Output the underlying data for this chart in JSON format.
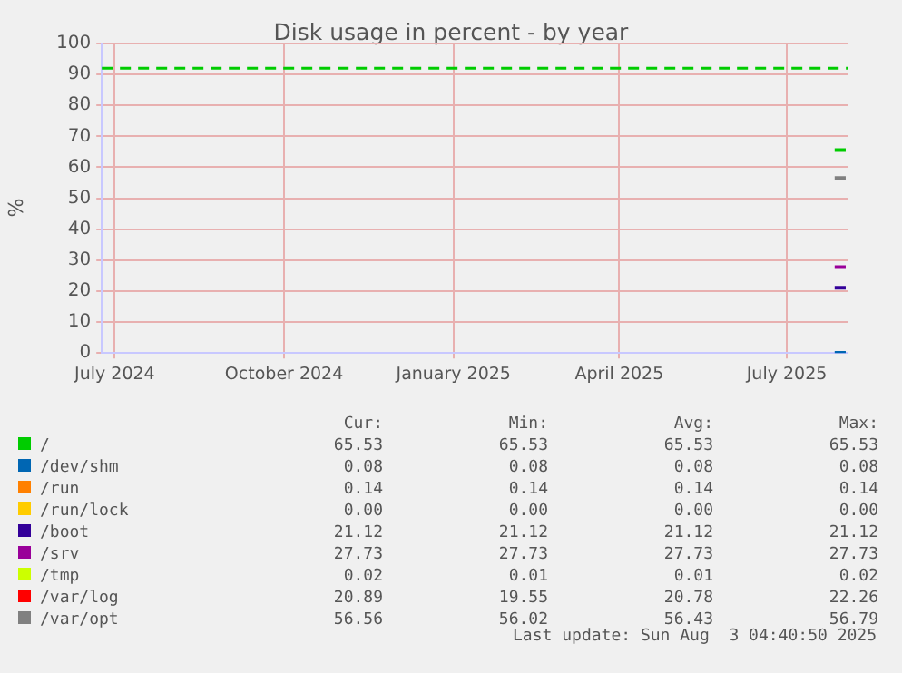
{
  "chart_data": {
    "type": "line",
    "title": "Disk usage in percent - by year",
    "ylabel": "%",
    "x": [
      "2025-07-27",
      "2025-08-02"
    ],
    "xlim": [
      "2024-06-24",
      "2025-08-03"
    ],
    "xticks": [
      {
        "value": "2024-07-01",
        "label": "July 2024"
      },
      {
        "value": "2024-10-01",
        "label": "October 2024"
      },
      {
        "value": "2025-01-01",
        "label": "January 2025"
      },
      {
        "value": "2025-04-01",
        "label": "April 2025"
      },
      {
        "value": "2025-07-01",
        "label": "July 2025"
      }
    ],
    "ylim": [
      0,
      100
    ],
    "yticks": [
      0,
      10,
      20,
      30,
      40,
      50,
      60,
      70,
      80,
      90,
      100
    ],
    "grid": true,
    "legend": "bottom",
    "marker": "none",
    "series": [
      {
        "name": "/",
        "color": "#00cc00",
        "values": [
          65.53,
          65.53
        ]
      },
      {
        "name": "/dev/shm",
        "color": "#0066b3",
        "values": [
          0.08,
          0.08
        ]
      },
      {
        "name": "/run",
        "color": "#ff8000",
        "values": [
          null,
          null
        ]
      },
      {
        "name": "/run/lock",
        "color": "#ffcc00",
        "values": [
          null,
          null
        ]
      },
      {
        "name": "/boot",
        "color": "#330099",
        "values": [
          21.12,
          21.12
        ]
      },
      {
        "name": "/srv",
        "color": "#990099",
        "values": [
          27.73,
          27.73
        ]
      },
      {
        "name": "/tmp",
        "color": "#ccff00",
        "values": [
          null,
          null
        ]
      },
      {
        "name": "/var/log",
        "color": "#ff0000",
        "values": [
          null,
          null
        ]
      },
      {
        "name": "/var/opt",
        "color": "#808080",
        "values": [
          56.56,
          56.56
        ]
      }
    ],
    "ref_lines": [
      {
        "axis": "y",
        "value": 92,
        "label": null,
        "color": "#00cc00",
        "line_style": "dashed"
      }
    ],
    "annotations": [
      "Cur:",
      "Min:",
      "Avg:",
      "Max:",
      "65.53",
      "65.53",
      "65.53",
      "65.53",
      "0.08",
      "0.08",
      "0.08",
      "0.08",
      "0.14",
      "0.14",
      "0.14",
      "0.14",
      "0.00",
      "0.00",
      "0.00",
      "0.00",
      "21.12",
      "21.12",
      "21.12",
      "21.12",
      "27.73",
      "27.73",
      "27.73",
      "27.73",
      "0.02",
      "0.01",
      "0.01",
      "0.02",
      "20.89",
      "19.55",
      "20.78",
      "22.26",
      "56.56",
      "56.02",
      "56.43",
      "56.79",
      "Last update: Sun Aug  3 04:40:50 2025"
    ]
  }
}
